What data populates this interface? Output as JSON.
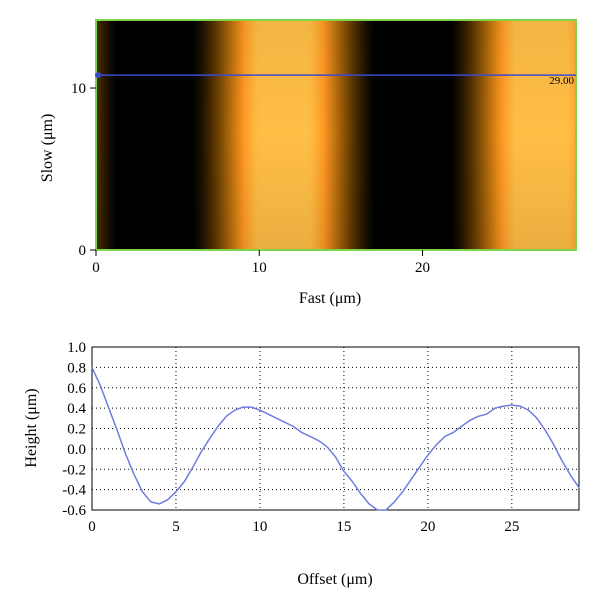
{
  "chart_data": [
    {
      "type": "heatmap",
      "xlabel": "Fast (μm)",
      "ylabel": "Slow (μm)",
      "xlim": [
        0,
        29.4
      ],
      "ylim": [
        0,
        14.2
      ],
      "xticks": [
        0,
        10,
        20
      ],
      "yticks": [
        0,
        10
      ],
      "colormap": "afm-copper",
      "stripe_period_um": 15.8,
      "dark_band_centers_um": [
        3.6,
        17.2
      ],
      "bright_band_centers_um": [
        9.5,
        25.2
      ],
      "marker_line_y_um": 10.8,
      "marker_line_color": "#3a4bd0",
      "marker_label": "29.00",
      "border_color": "#7fd34a"
    },
    {
      "type": "line",
      "xlabel": "Offset (μm)",
      "ylabel": "Height (μm)",
      "xlim": [
        0,
        29
      ],
      "ylim": [
        -0.6,
        1.0
      ],
      "xticks": [
        0,
        5,
        10,
        15,
        20,
        25
      ],
      "yticks": [
        -0.6,
        -0.4,
        -0.2,
        0.0,
        0.2,
        0.4,
        0.6,
        0.8,
        1.0
      ],
      "grid": true,
      "line_color": "#6f7de0",
      "series": [
        {
          "x": [
            0,
            0.5,
            1,
            1.5,
            2,
            2.5,
            3,
            3.5,
            4,
            4.5,
            5,
            5.5,
            6,
            6.5,
            7,
            7.5,
            8,
            8.5,
            9,
            9.5,
            10,
            10.5,
            11,
            11.5,
            12,
            12.5,
            13,
            13.5,
            14,
            14.5,
            15,
            15.5,
            16,
            16.5,
            17,
            17.5,
            18,
            18.5,
            19,
            19.5,
            20,
            20.5,
            21,
            21.5,
            22,
            22.5,
            23,
            23.5,
            24,
            24.5,
            25,
            25.5,
            26,
            26.5,
            27,
            27.5,
            28,
            28.5,
            29
          ],
          "y": [
            0.8,
            0.62,
            0.4,
            0.18,
            -0.05,
            -0.25,
            -0.42,
            -0.52,
            -0.54,
            -0.5,
            -0.42,
            -0.32,
            -0.18,
            -0.03,
            0.1,
            0.22,
            0.32,
            0.38,
            0.41,
            0.41,
            0.38,
            0.34,
            0.3,
            0.26,
            0.22,
            0.16,
            0.12,
            0.08,
            0.02,
            -0.08,
            -0.22,
            -0.32,
            -0.44,
            -0.54,
            -0.6,
            -0.6,
            -0.52,
            -0.42,
            -0.3,
            -0.18,
            -0.06,
            0.04,
            0.12,
            0.16,
            0.22,
            0.28,
            0.32,
            0.34,
            0.4,
            0.42,
            0.43,
            0.42,
            0.38,
            0.3,
            0.18,
            0.04,
            -0.12,
            -0.26,
            -0.38
          ]
        }
      ]
    }
  ]
}
